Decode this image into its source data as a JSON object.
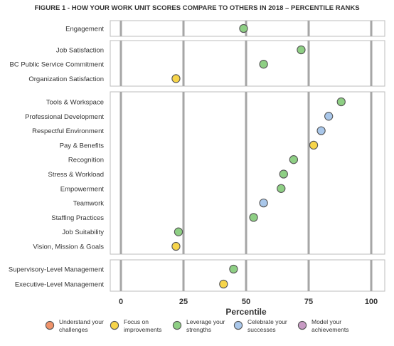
{
  "chart_data": {
    "type": "scatter",
    "title": "FIGURE 1 - HOW YOUR WORK UNIT SCORES COMPARE TO OTHERS IN 2018 – PERCENTILE RANKS",
    "xlabel": "Percentile",
    "xlim": [
      0,
      100
    ],
    "xticks": [
      0,
      25,
      50,
      75,
      100
    ],
    "grid": true,
    "legend_position": "bottom",
    "colors": {
      "understand": "#f0936a",
      "focus": "#f7d54a",
      "leverage": "#8ecf84",
      "celebrate": "#a9c7ea",
      "model": "#c89bc4"
    },
    "legend": [
      {
        "key": "understand",
        "line1": "Understand your",
        "line2": "challenges"
      },
      {
        "key": "focus",
        "line1": "Focus on",
        "line2": "improvements"
      },
      {
        "key": "leverage",
        "line1": "Leverage your",
        "line2": "strengths"
      },
      {
        "key": "celebrate",
        "line1": "Celebrate your",
        "line2": "successes"
      },
      {
        "key": "model",
        "line1": "Model your",
        "line2": "achievements"
      }
    ],
    "groups": [
      {
        "items": [
          {
            "label": "Engagement",
            "value": 49,
            "category": "leverage"
          }
        ]
      },
      {
        "items": [
          {
            "label": "Job Satisfaction",
            "value": 72,
            "category": "leverage"
          },
          {
            "label": "BC Public Service Commitment",
            "value": 57,
            "category": "leverage"
          },
          {
            "label": "Organization Satisfaction",
            "value": 22,
            "category": "focus"
          }
        ]
      },
      {
        "items": [
          {
            "label": "Tools & Workspace",
            "value": 88,
            "category": "leverage"
          },
          {
            "label": "Professional Development",
            "value": 83,
            "category": "celebrate"
          },
          {
            "label": "Respectful Environment",
            "value": 80,
            "category": "celebrate"
          },
          {
            "label": "Pay & Benefits",
            "value": 77,
            "category": "focus"
          },
          {
            "label": "Recognition",
            "value": 69,
            "category": "leverage"
          },
          {
            "label": "Stress & Workload",
            "value": 65,
            "category": "leverage"
          },
          {
            "label": "Empowerment",
            "value": 64,
            "category": "leverage"
          },
          {
            "label": "Teamwork",
            "value": 57,
            "category": "celebrate"
          },
          {
            "label": "Staffing Practices",
            "value": 53,
            "category": "leverage"
          },
          {
            "label": "Job Suitability",
            "value": 23,
            "category": "leverage"
          },
          {
            "label": "Vision, Mission & Goals",
            "value": 22,
            "category": "focus"
          }
        ]
      },
      {
        "items": [
          {
            "label": "Supervisory-Level Management",
            "value": 45,
            "category": "leverage"
          },
          {
            "label": "Executive-Level Management",
            "value": 41,
            "category": "focus"
          }
        ]
      }
    ]
  }
}
